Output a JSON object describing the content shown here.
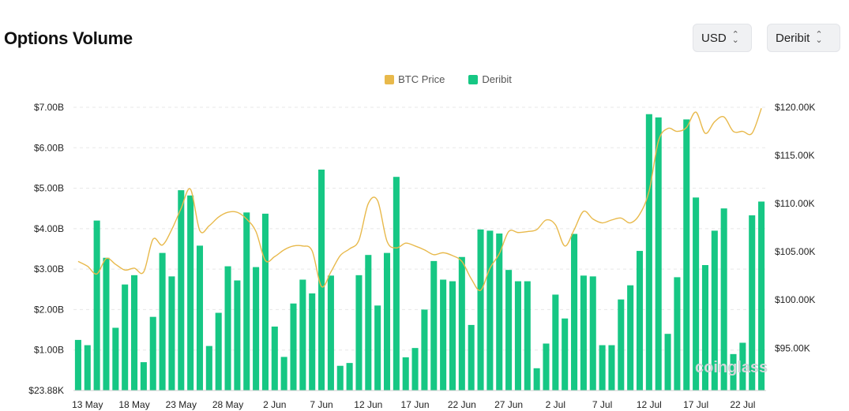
{
  "header": {
    "title": "Options Volume",
    "currency_select": "USD",
    "exchange_select": "Deribit"
  },
  "watermark": "coinglass",
  "colors": {
    "deribit": "#16c784",
    "btc_price": "#e8b94b",
    "grid": "#e8e8e8"
  },
  "chart_data": {
    "type": "bar",
    "legend": [
      "BTC Price",
      "Deribit"
    ],
    "legend_position": "top-center",
    "y_left": {
      "ticks": [
        "$23.88K",
        "$1.00B",
        "$2.00B",
        "$3.00B",
        "$4.00B",
        "$5.00B",
        "$6.00B",
        "$7.00B"
      ],
      "range": [
        2.388e-05,
        7.0
      ]
    },
    "y_right": {
      "ticks": [
        "$95.00K",
        "$100.00K",
        "$105.00K",
        "$110.00K",
        "$115.00K",
        "$120.00K"
      ],
      "range": [
        90.6,
        120
      ]
    },
    "x_ticks": [
      "13 May",
      "18 May",
      "23 May",
      "28 May",
      "2 Jun",
      "7 Jun",
      "12 Jun",
      "17 Jun",
      "22 Jun",
      "27 Jun",
      "2 Jul",
      "7 Jul",
      "12 Jul",
      "17 Jul",
      "22 Jul"
    ],
    "x_tick_start_index": 1,
    "x_tick_step": 5,
    "grid": true,
    "series": [
      {
        "name": "Deribit",
        "type": "bar",
        "values": [
          1.25,
          1.12,
          4.2,
          3.28,
          1.55,
          2.62,
          2.85,
          0.7,
          1.82,
          3.4,
          2.82,
          4.95,
          4.82,
          3.58,
          1.1,
          1.92,
          3.07,
          2.72,
          4.4,
          3.05,
          4.37,
          1.58,
          0.83,
          2.15,
          2.74,
          2.4,
          5.46,
          2.84,
          0.61,
          0.68,
          2.85,
          3.35,
          2.1,
          3.4,
          5.28,
          0.82,
          1.05,
          2.0,
          3.2,
          2.74,
          2.7,
          3.3,
          1.62,
          3.98,
          3.95,
          3.88,
          2.98,
          2.7,
          2.7,
          0.55,
          1.16,
          2.37,
          1.78,
          3.87,
          2.84,
          2.82,
          1.12,
          1.12,
          2.25,
          2.6,
          3.45,
          6.83,
          6.75,
          1.4,
          2.8,
          6.7,
          4.77,
          3.1,
          3.95,
          4.5,
          0.9,
          1.18,
          4.33,
          4.67
        ]
      },
      {
        "name": "BTC Price",
        "type": "line",
        "unit": "thousand USD",
        "values": [
          104.0,
          103.5,
          102.7,
          104.3,
          103.7,
          103.1,
          103.3,
          102.9,
          106.3,
          105.7,
          107.3,
          109.5,
          111.5,
          107.2,
          107.7,
          108.6,
          109.1,
          109.1,
          108.4,
          107.1,
          104.1,
          104.5,
          105.2,
          105.6,
          105.6,
          105.1,
          101.4,
          102.9,
          104.6,
          105.3,
          106.2,
          110.0,
          110.3,
          106.1,
          105.4,
          105.9,
          105.6,
          105.2,
          104.7,
          104.9,
          104.6,
          104.0,
          102.2,
          101.0,
          103.3,
          104.8,
          107.1,
          107.0,
          107.1,
          107.3,
          108.3,
          107.8,
          105.6,
          107.3,
          109.2,
          108.4,
          108.0,
          108.3,
          108.5,
          108.0,
          108.9,
          111.3,
          116.5,
          117.8,
          117.5,
          117.9,
          119.5,
          117.3,
          118.5,
          119.0,
          117.5,
          117.5,
          117.3,
          119.9
        ]
      }
    ]
  }
}
